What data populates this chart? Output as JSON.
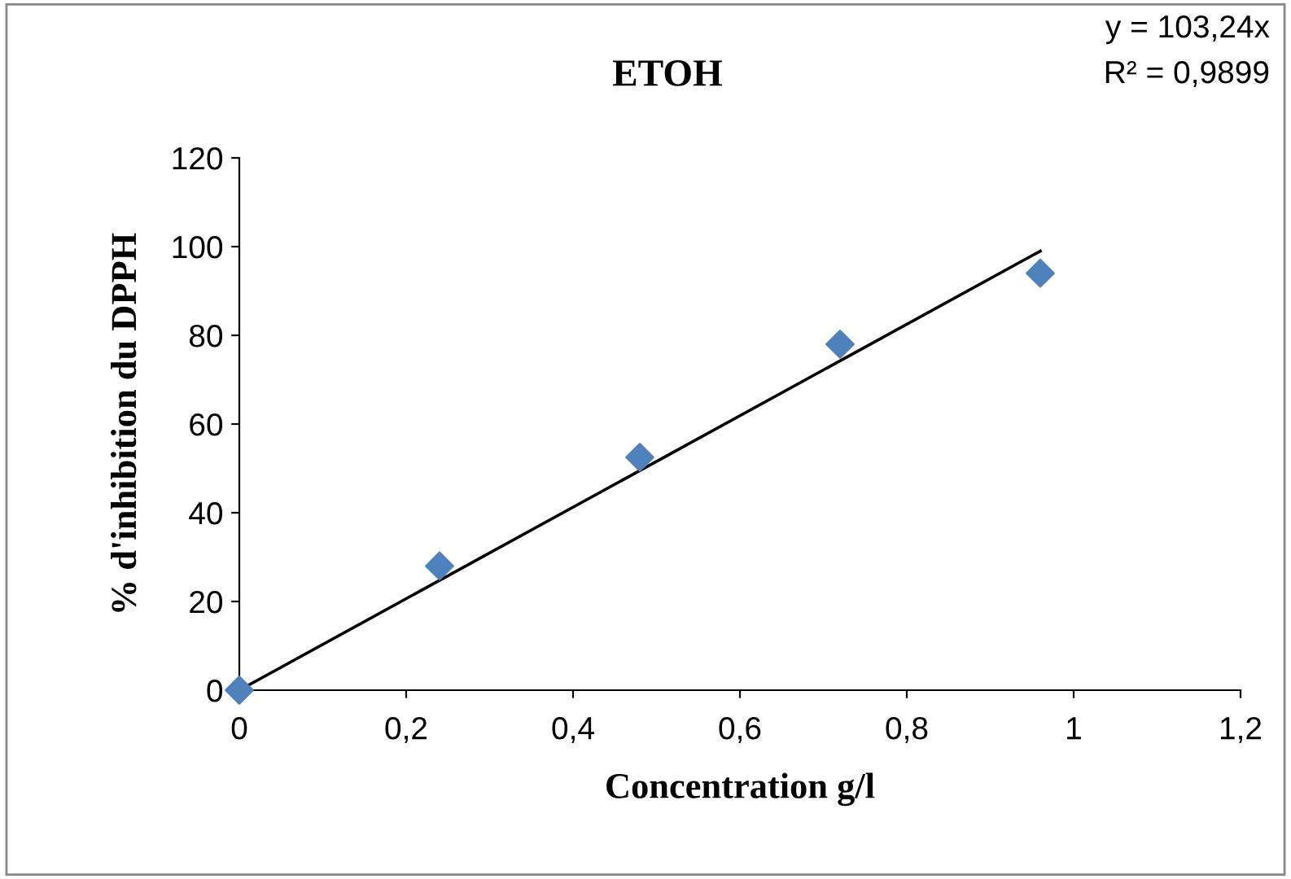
{
  "chart_data": {
    "type": "scatter",
    "title": "ETOH",
    "xlabel": "Concentration g/l",
    "ylabel": "% d'inhibition du DPPH",
    "annotations": [
      "y = 103,24x",
      "R² = 0,9899"
    ],
    "series": [
      {
        "color": "#4f81bd",
        "marker": "diamond",
        "x": [
          0,
          0.24,
          0.48,
          0.72,
          0.96
        ],
        "values": [
          0,
          28,
          52.5,
          78,
          94
        ]
      },
      {
        "type": "line",
        "color": "#000000",
        "marker": "none",
        "line_style": "solid",
        "x": [
          0,
          0.96
        ],
        "values": [
          0,
          99
        ]
      }
    ],
    "xlim": [
      0,
      1.2
    ],
    "ylim": [
      0,
      120
    ],
    "xticks": [
      0,
      {
        "value": 0.2,
        "label": "0,2"
      },
      {
        "value": 0.4,
        "label": "0,4"
      },
      {
        "value": 0.6,
        "label": "0,6"
      },
      {
        "value": 0.8,
        "label": "0,8"
      },
      1,
      {
        "value": 1.2,
        "label": "1,2"
      }
    ],
    "yticks": [
      0,
      20,
      40,
      60,
      80,
      100,
      120
    ],
    "grid": false
  }
}
